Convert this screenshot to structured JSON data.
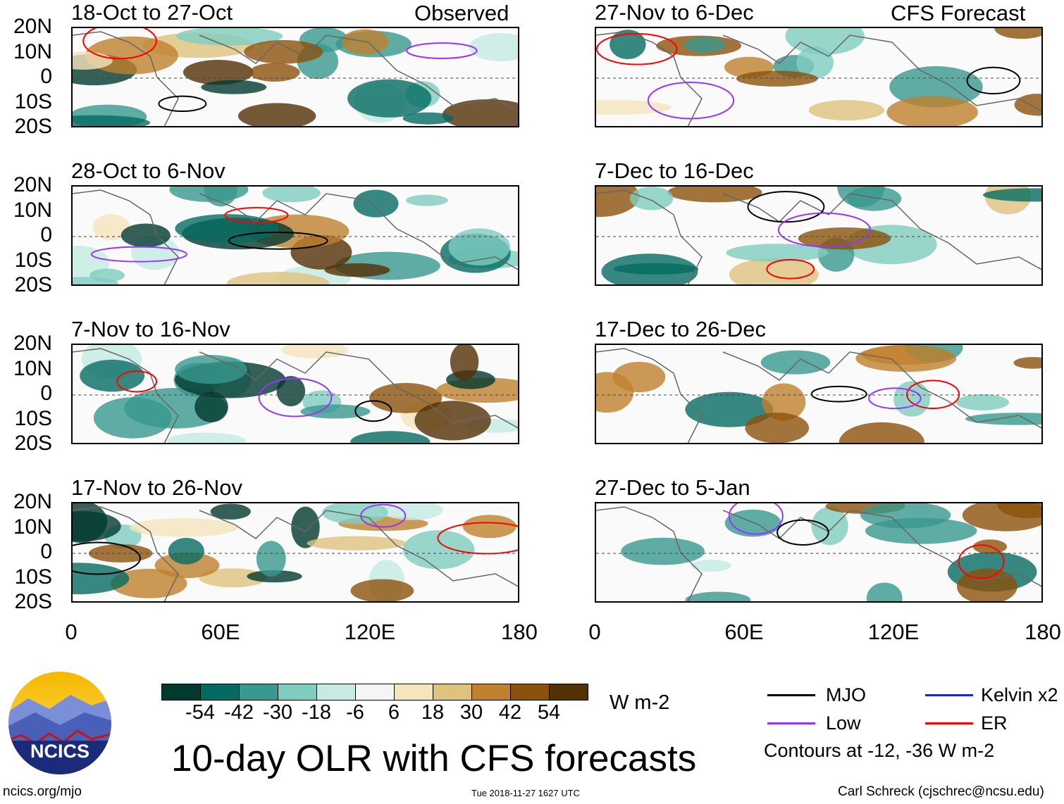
{
  "observed_label": "Observed",
  "forecast_label": "CFS Forecast",
  "panels_observed": [
    "18-Oct to 27-Oct",
    "28-Oct to 6-Nov",
    "7-Nov to 16-Nov",
    "17-Nov to 26-Nov"
  ],
  "panels_forecast": [
    "27-Nov to 6-Dec",
    "7-Dec to 16-Dec",
    "17-Dec to 26-Dec",
    "27-Dec to 5-Jan"
  ],
  "lat_labels": [
    "20N",
    "10N",
    "0",
    "10S",
    "20S"
  ],
  "lon_labels": [
    "0",
    "60E",
    "120E",
    "180"
  ],
  "colorbar": {
    "colors": [
      "#023a30",
      "#056b62",
      "#38998e",
      "#80cdc0",
      "#c6ebe4",
      "#f5f5f5",
      "#f5e5bd",
      "#dfc27d",
      "#bf812d",
      "#8c510a",
      "#543005"
    ],
    "ticks": [
      "-54",
      "-42",
      "-30",
      "-18",
      "-6",
      "6",
      "18",
      "30",
      "42",
      "54"
    ],
    "units": "W m-2"
  },
  "title": "10-day OLR with CFS forecasts",
  "timestamp": "Tue 2018-11-27 1627 UTC",
  "legend": {
    "items": [
      {
        "label": "MJO",
        "color": "#000000"
      },
      {
        "label": "Kelvin x2",
        "color": "#2222dd"
      },
      {
        "label": "Low",
        "color": "#9933ff"
      },
      {
        "label": "ER",
        "color": "#ff0000"
      }
    ],
    "note": "Contours at -12, -36 W m-2"
  },
  "footer": {
    "url": "ncics.org/mjo",
    "credit": "Carl Schreck (cjschrec@ncsu.edu)"
  },
  "logo": {
    "text": "NCICS"
  }
}
